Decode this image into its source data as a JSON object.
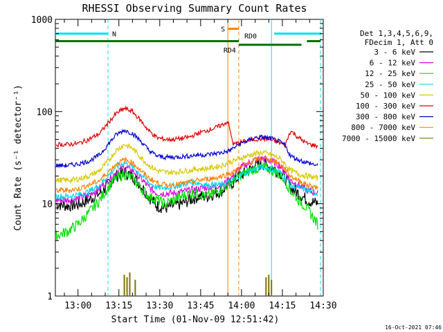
{
  "chart_data": {
    "type": "line",
    "title": "RHESSI Observing Summary Count Rates",
    "xlabel": "Start Time (01-Nov-09 12:51:42)",
    "ylabel": "Count Rate (s⁻¹ detector⁻¹)",
    "y_scale": "log",
    "ylim": [
      1,
      1000
    ],
    "xlim": [
      "12:51:42",
      "14:30"
    ],
    "x_ticks": [
      "13:00",
      "13:15",
      "13:30",
      "13:45",
      "14:00",
      "14:15",
      "14:30"
    ],
    "y_ticks": [
      "1",
      "10",
      "100",
      "1000"
    ],
    "grid": false,
    "legend_position": "right",
    "legend_header": [
      "Det 1,3,4,5,6,9,",
      "FDecim 1, Att 0"
    ],
    "timestamp": "16-Oct-2021 07:46",
    "x": [
      "12:52",
      "12:56",
      "13:00",
      "13:04",
      "13:08",
      "13:11",
      "13:14",
      "13:17",
      "13:20",
      "13:23",
      "13:26",
      "13:29",
      "13:32",
      "13:35",
      "13:38",
      "13:41",
      "13:44",
      "13:47",
      "13:50",
      "13:53",
      "13:55",
      "13:57",
      "13:59",
      "14:02",
      "14:05",
      "14:08",
      "14:11",
      "14:14",
      "14:16",
      "14:18",
      "14:21",
      "14:24",
      "14:28"
    ],
    "series": [
      {
        "name": "3 - 6 keV",
        "color": "#000000",
        "values": [
          10,
          9.5,
          9.8,
          11,
          13,
          16,
          20,
          22,
          20,
          16,
          12,
          9.5,
          9,
          9.5,
          10,
          11,
          12,
          12,
          13,
          14,
          16,
          17,
          20,
          22,
          26,
          27,
          25,
          22,
          19,
          15,
          13,
          11,
          10
        ]
      },
      {
        "name": "6 - 12 keV",
        "color": "#e000e0",
        "values": [
          11,
          11,
          11.5,
          12.5,
          15,
          18,
          22,
          25,
          23,
          19,
          15,
          13,
          13,
          13,
          13.5,
          14,
          14.5,
          15,
          15.5,
          16,
          18,
          20,
          24,
          27,
          30,
          31,
          29,
          26,
          22,
          18,
          16,
          14,
          13
        ]
      },
      {
        "name": "12 - 25 keV",
        "color": "#00e000",
        "values": [
          4.5,
          5,
          6,
          8,
          11,
          15,
          19,
          21,
          19,
          15,
          12,
          11,
          10,
          11,
          12,
          13,
          13,
          12,
          13,
          15,
          16,
          18,
          20,
          22,
          24,
          25,
          23,
          21,
          18,
          14,
          11,
          9,
          6
        ]
      },
      {
        "name": "25 - 50 keV",
        "color": "#00d8e8",
        "values": [
          12,
          12,
          12.5,
          13.5,
          16,
          20,
          25,
          28,
          25,
          21,
          17,
          15,
          15,
          15.5,
          16,
          17,
          17,
          16,
          16,
          16,
          17,
          18,
          20,
          22,
          24,
          25,
          24,
          22,
          19,
          16,
          15,
          14,
          13
        ]
      },
      {
        "name": "50 - 100 keV",
        "color": "#d8c800",
        "values": [
          18,
          18,
          18.5,
          20,
          23,
          29,
          38,
          44,
          40,
          32,
          26,
          23,
          22,
          22,
          22.5,
          23,
          24,
          24,
          25,
          26,
          28,
          29,
          31,
          33,
          35,
          36,
          34,
          31,
          27,
          23,
          21,
          20,
          19
        ]
      },
      {
        "name": "100 - 300 keV",
        "color": "#e00000",
        "values": [
          44,
          44,
          45,
          50,
          58,
          75,
          95,
          108,
          100,
          80,
          62,
          52,
          50,
          50,
          51,
          53,
          58,
          62,
          66,
          72,
          78,
          44,
          46,
          48,
          50,
          51,
          49,
          46,
          43,
          62,
          52,
          45,
          42
        ]
      },
      {
        "name": "300 - 800 keV",
        "color": "#0000d0",
        "values": [
          26,
          26,
          27,
          29,
          34,
          44,
          56,
          63,
          58,
          48,
          38,
          33,
          32,
          32,
          32.5,
          33,
          34,
          34,
          35,
          36,
          37,
          40,
          44,
          48,
          52,
          53,
          51,
          47,
          43,
          33,
          30,
          28,
          26
        ]
      },
      {
        "name": "800 - 7000 keV",
        "color": "#ff8000",
        "values": [
          14,
          14,
          14.5,
          16,
          18,
          22,
          27,
          30,
          28,
          23,
          19,
          17,
          16,
          16,
          16.5,
          17,
          18,
          18.5,
          19,
          20,
          21,
          22,
          24,
          27,
          30,
          31,
          30,
          27,
          24,
          20,
          18,
          16,
          15
        ]
      },
      {
        "name": "7000 - 15000 keV",
        "color": "#807000",
        "values": [
          1,
          1,
          1,
          1,
          1,
          1,
          1,
          1.6,
          1,
          1,
          1,
          1,
          1,
          1,
          1,
          1,
          1,
          1,
          1,
          1,
          1,
          1,
          1,
          1,
          1,
          1,
          1,
          1,
          1,
          1,
          1,
          1,
          1
        ]
      }
    ],
    "spikes_7000_15000": {
      "times": [
        "13:17",
        "13:18",
        "13:19",
        "13:21",
        "14:09",
        "14:10",
        "14:11"
      ],
      "values": [
        1.7,
        1.6,
        1.8,
        1.5,
        1.6,
        1.7,
        1.5
      ]
    },
    "state_bars": [
      {
        "label": "N",
        "color": "#00e0f0",
        "level": 700,
        "segments": [
          [
            "12:51:42",
            "13:11"
          ],
          [
            "14:12",
            "14:29"
          ]
        ]
      },
      {
        "label": "S",
        "color": "#ff8000",
        "level": 790,
        "segments": [
          [
            "13:55",
            "13:59"
          ]
        ]
      },
      {
        "label": "RD0",
        "color": "#007000",
        "level": 580,
        "segments": [
          [
            "12:51:42",
            "13:59"
          ],
          [
            "14:24",
            "14:29"
          ]
        ]
      },
      {
        "label": "RD4",
        "color": "#007000",
        "level": 530,
        "segments": [
          [
            "13:59",
            "14:22"
          ]
        ]
      }
    ],
    "markers": [
      {
        "time": "13:11",
        "color": "#00e0f0",
        "style": "dashed"
      },
      {
        "time": "13:55",
        "color": "#ff8000",
        "style": "solid"
      },
      {
        "time": "13:59",
        "color": "#ff8000",
        "style": "dashed"
      },
      {
        "time": "14:11",
        "color": "#00e0f0",
        "style": "solid"
      },
      {
        "time": "14:29",
        "color": "#00e0f0",
        "style": "dashed"
      }
    ]
  }
}
